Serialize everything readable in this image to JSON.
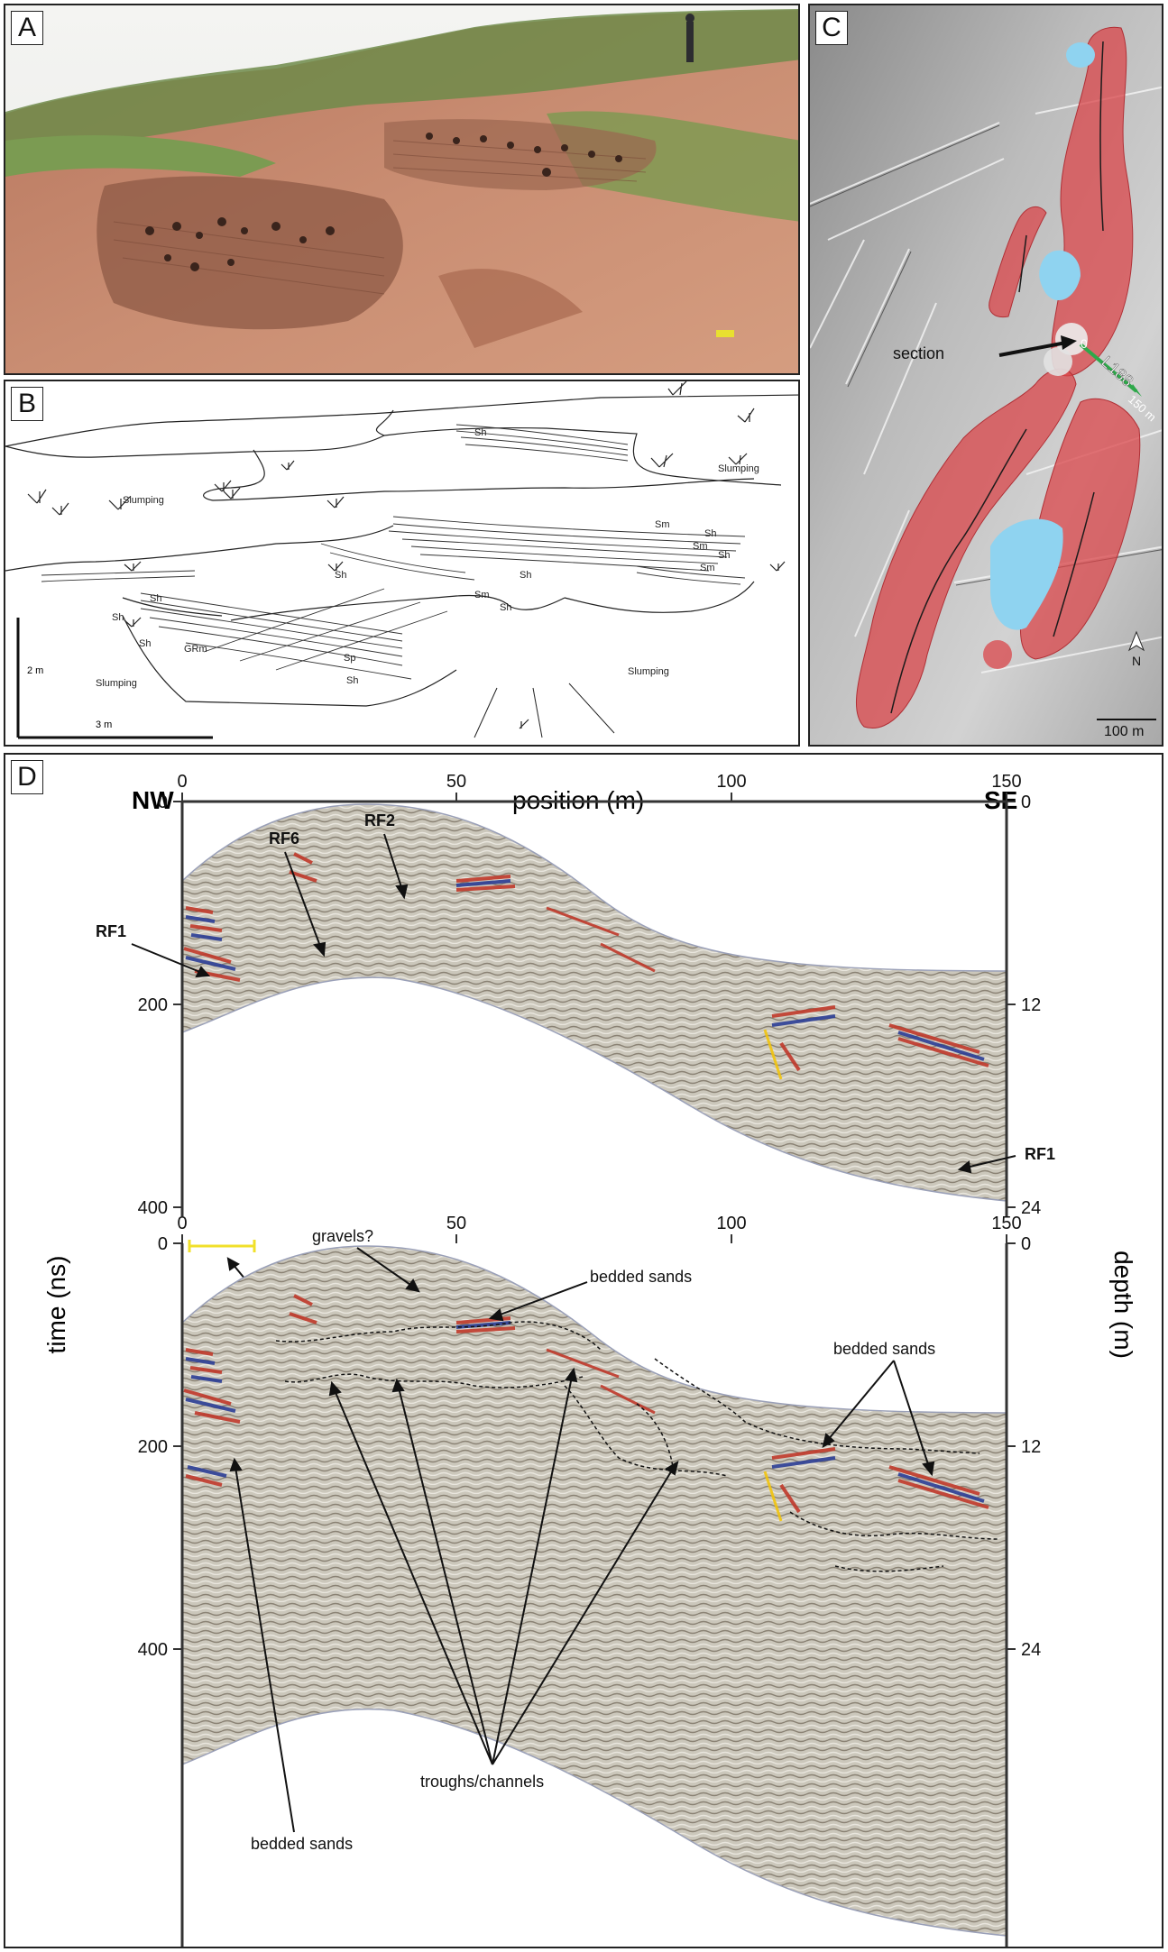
{
  "panel_a": {
    "label": "A"
  },
  "panel_b": {
    "label": "B",
    "facies": [
      {
        "text": "Sh"
      },
      {
        "text": "Slumping"
      },
      {
        "text": "Slumping"
      },
      {
        "text": "Sm"
      },
      {
        "text": "Sh"
      },
      {
        "text": "Sm"
      },
      {
        "text": "Sh"
      },
      {
        "text": "Sm"
      },
      {
        "text": "Sh"
      },
      {
        "text": "Sh"
      },
      {
        "text": "Sm"
      },
      {
        "text": "Sh"
      },
      {
        "text": "Sh"
      },
      {
        "text": "Sh"
      },
      {
        "text": "Sh"
      },
      {
        "text": "GRm"
      },
      {
        "text": "Sp"
      },
      {
        "text": "Sh"
      },
      {
        "text": "Slumping"
      },
      {
        "text": "Slumping"
      }
    ],
    "scale_vertical": "2 m",
    "scale_horizontal": "3 m"
  },
  "panel_c": {
    "label": "C",
    "section_label": "section",
    "line_label": "L188",
    "line_start": "0",
    "line_end": "150 m",
    "north": "N",
    "scale": "100 m",
    "colors": {
      "ridge": "#d9464a",
      "water": "#8fd3f0",
      "profile": "#2ea84a"
    }
  },
  "panel_d": {
    "label": "D",
    "nw": "NW",
    "se": "SE",
    "x_title": "position (m)",
    "y_left_title": "time (ns)",
    "y_right_title": "depth (m)",
    "x_ticks": [
      "0",
      "50",
      "100",
      "150"
    ],
    "time_ticks": [
      "0",
      "200",
      "400"
    ],
    "depth_ticks": [
      "0",
      "12",
      "24"
    ],
    "top_annotations": {
      "rf1_left": "RF1",
      "rf6": "RF6",
      "rf2": "RF2",
      "rf1_right": "RF1",
      "section": "section"
    },
    "bottom_annotations": {
      "gravels": "gravels?",
      "bedded_sands_top": "bedded sands",
      "bedded_sands_right": "bedded sands",
      "troughs": "troughs/channels",
      "bedded_sands_left": "bedded sands"
    }
  }
}
